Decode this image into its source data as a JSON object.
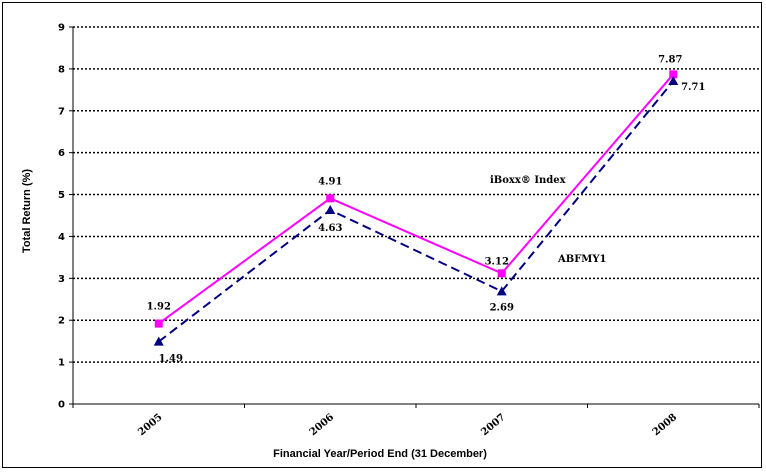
{
  "chart_data": {
    "type": "line",
    "categories": [
      "2005",
      "2006",
      "2007",
      "2008"
    ],
    "xlabel": "Financial Year/Period End (31 December)",
    "ylabel": "Total Return (%)",
    "ylim": [
      0,
      9
    ],
    "yticks": [
      "0",
      "1",
      "2",
      "3",
      "4",
      "5",
      "6",
      "7",
      "8",
      "9"
    ],
    "grid": "horizontal dotted",
    "series": [
      {
        "name": "iBoxx® Index",
        "values": [
          1.92,
          4.91,
          3.12,
          7.87
        ],
        "labels": [
          "1.92",
          "4.91",
          "3.12",
          "7.87"
        ],
        "color": "#ff00ff",
        "marker": "square",
        "line_style": "solid"
      },
      {
        "name": "ABFMY1",
        "values": [
          1.49,
          4.63,
          2.69,
          7.71
        ],
        "labels": [
          "1.49",
          "4.63",
          "2.69",
          "7.71"
        ],
        "color": "#000080",
        "marker": "triangle",
        "line_style": "dashed"
      }
    ]
  }
}
